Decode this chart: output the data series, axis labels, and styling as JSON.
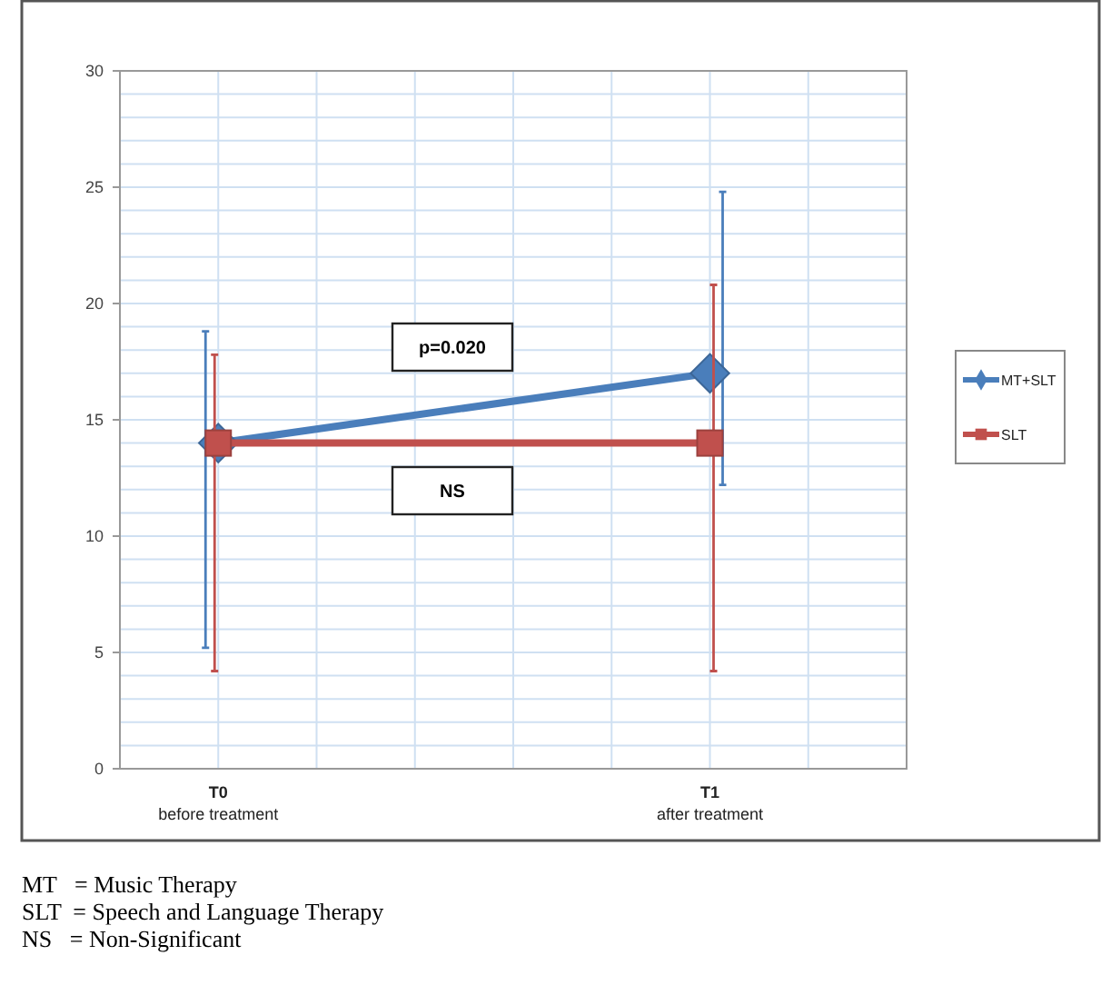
{
  "chart_data": {
    "type": "line",
    "categories": [
      "T0\nbefore treatment",
      "T1\nafter treatment"
    ],
    "series": [
      {
        "name": "MT+SLT",
        "color": "#4a7ebb",
        "values": [
          14,
          17
        ],
        "marker": "diamond",
        "errors": [
          [
            5.2,
            18.8
          ],
          [
            12.2,
            24.8
          ]
        ]
      },
      {
        "name": "SLT",
        "color": "#c0504d",
        "values": [
          14,
          14
        ],
        "marker": "square",
        "errors": [
          [
            4.2,
            17.8
          ],
          [
            4.2,
            20.8
          ]
        ]
      }
    ],
    "ylim": [
      0,
      30
    ],
    "yticks": [
      0,
      5,
      10,
      15,
      20,
      25,
      30
    ],
    "grid": true,
    "legend": "right",
    "annotations": [
      "p=0.020",
      "NS",
      "MT   = Music Therapy",
      "SLT  = Speech and Language Therapy",
      "NS   = Non-Significant"
    ]
  }
}
